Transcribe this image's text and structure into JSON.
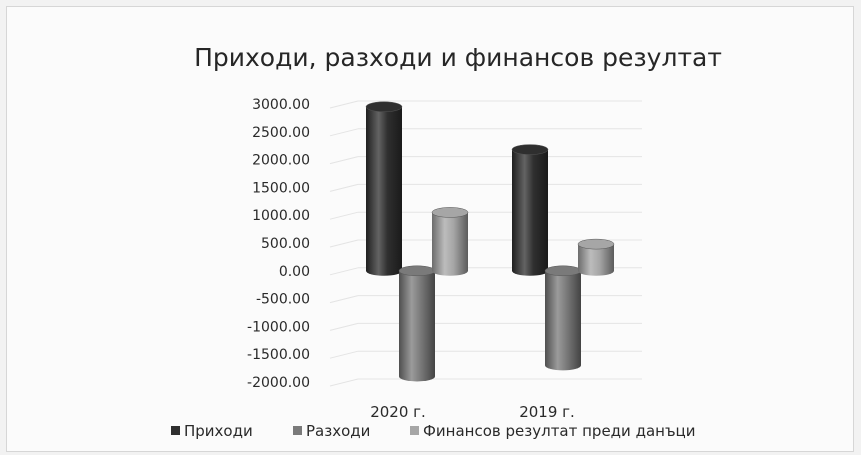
{
  "chart_data": {
    "type": "bar",
    "title": "Приходи, разходи и финансов резултат",
    "categories": [
      "2020 г.",
      "2019 г."
    ],
    "series": [
      {
        "name": "Приходи",
        "values": [
          2950,
          2180
        ],
        "color": "#2f2f2f"
      },
      {
        "name": "Разходи",
        "values": [
          -1900,
          -1700
        ],
        "color": "#7a7a7a"
      },
      {
        "name": "Финансов резултат преди данъци",
        "values": [
          1050,
          480
        ],
        "color": "#a6a6a6"
      }
    ],
    "yticks": [
      "3000.00",
      "2500.00",
      "2000.00",
      "1500.00",
      "1000.00",
      "500.00",
      "0.00",
      "-500.00",
      "-1000.00",
      "-1500.00",
      "-2000.00"
    ],
    "ylim": [
      -2000,
      3000
    ],
    "grid": true,
    "legend_position": "bottom",
    "style": "3d-cylinder"
  }
}
